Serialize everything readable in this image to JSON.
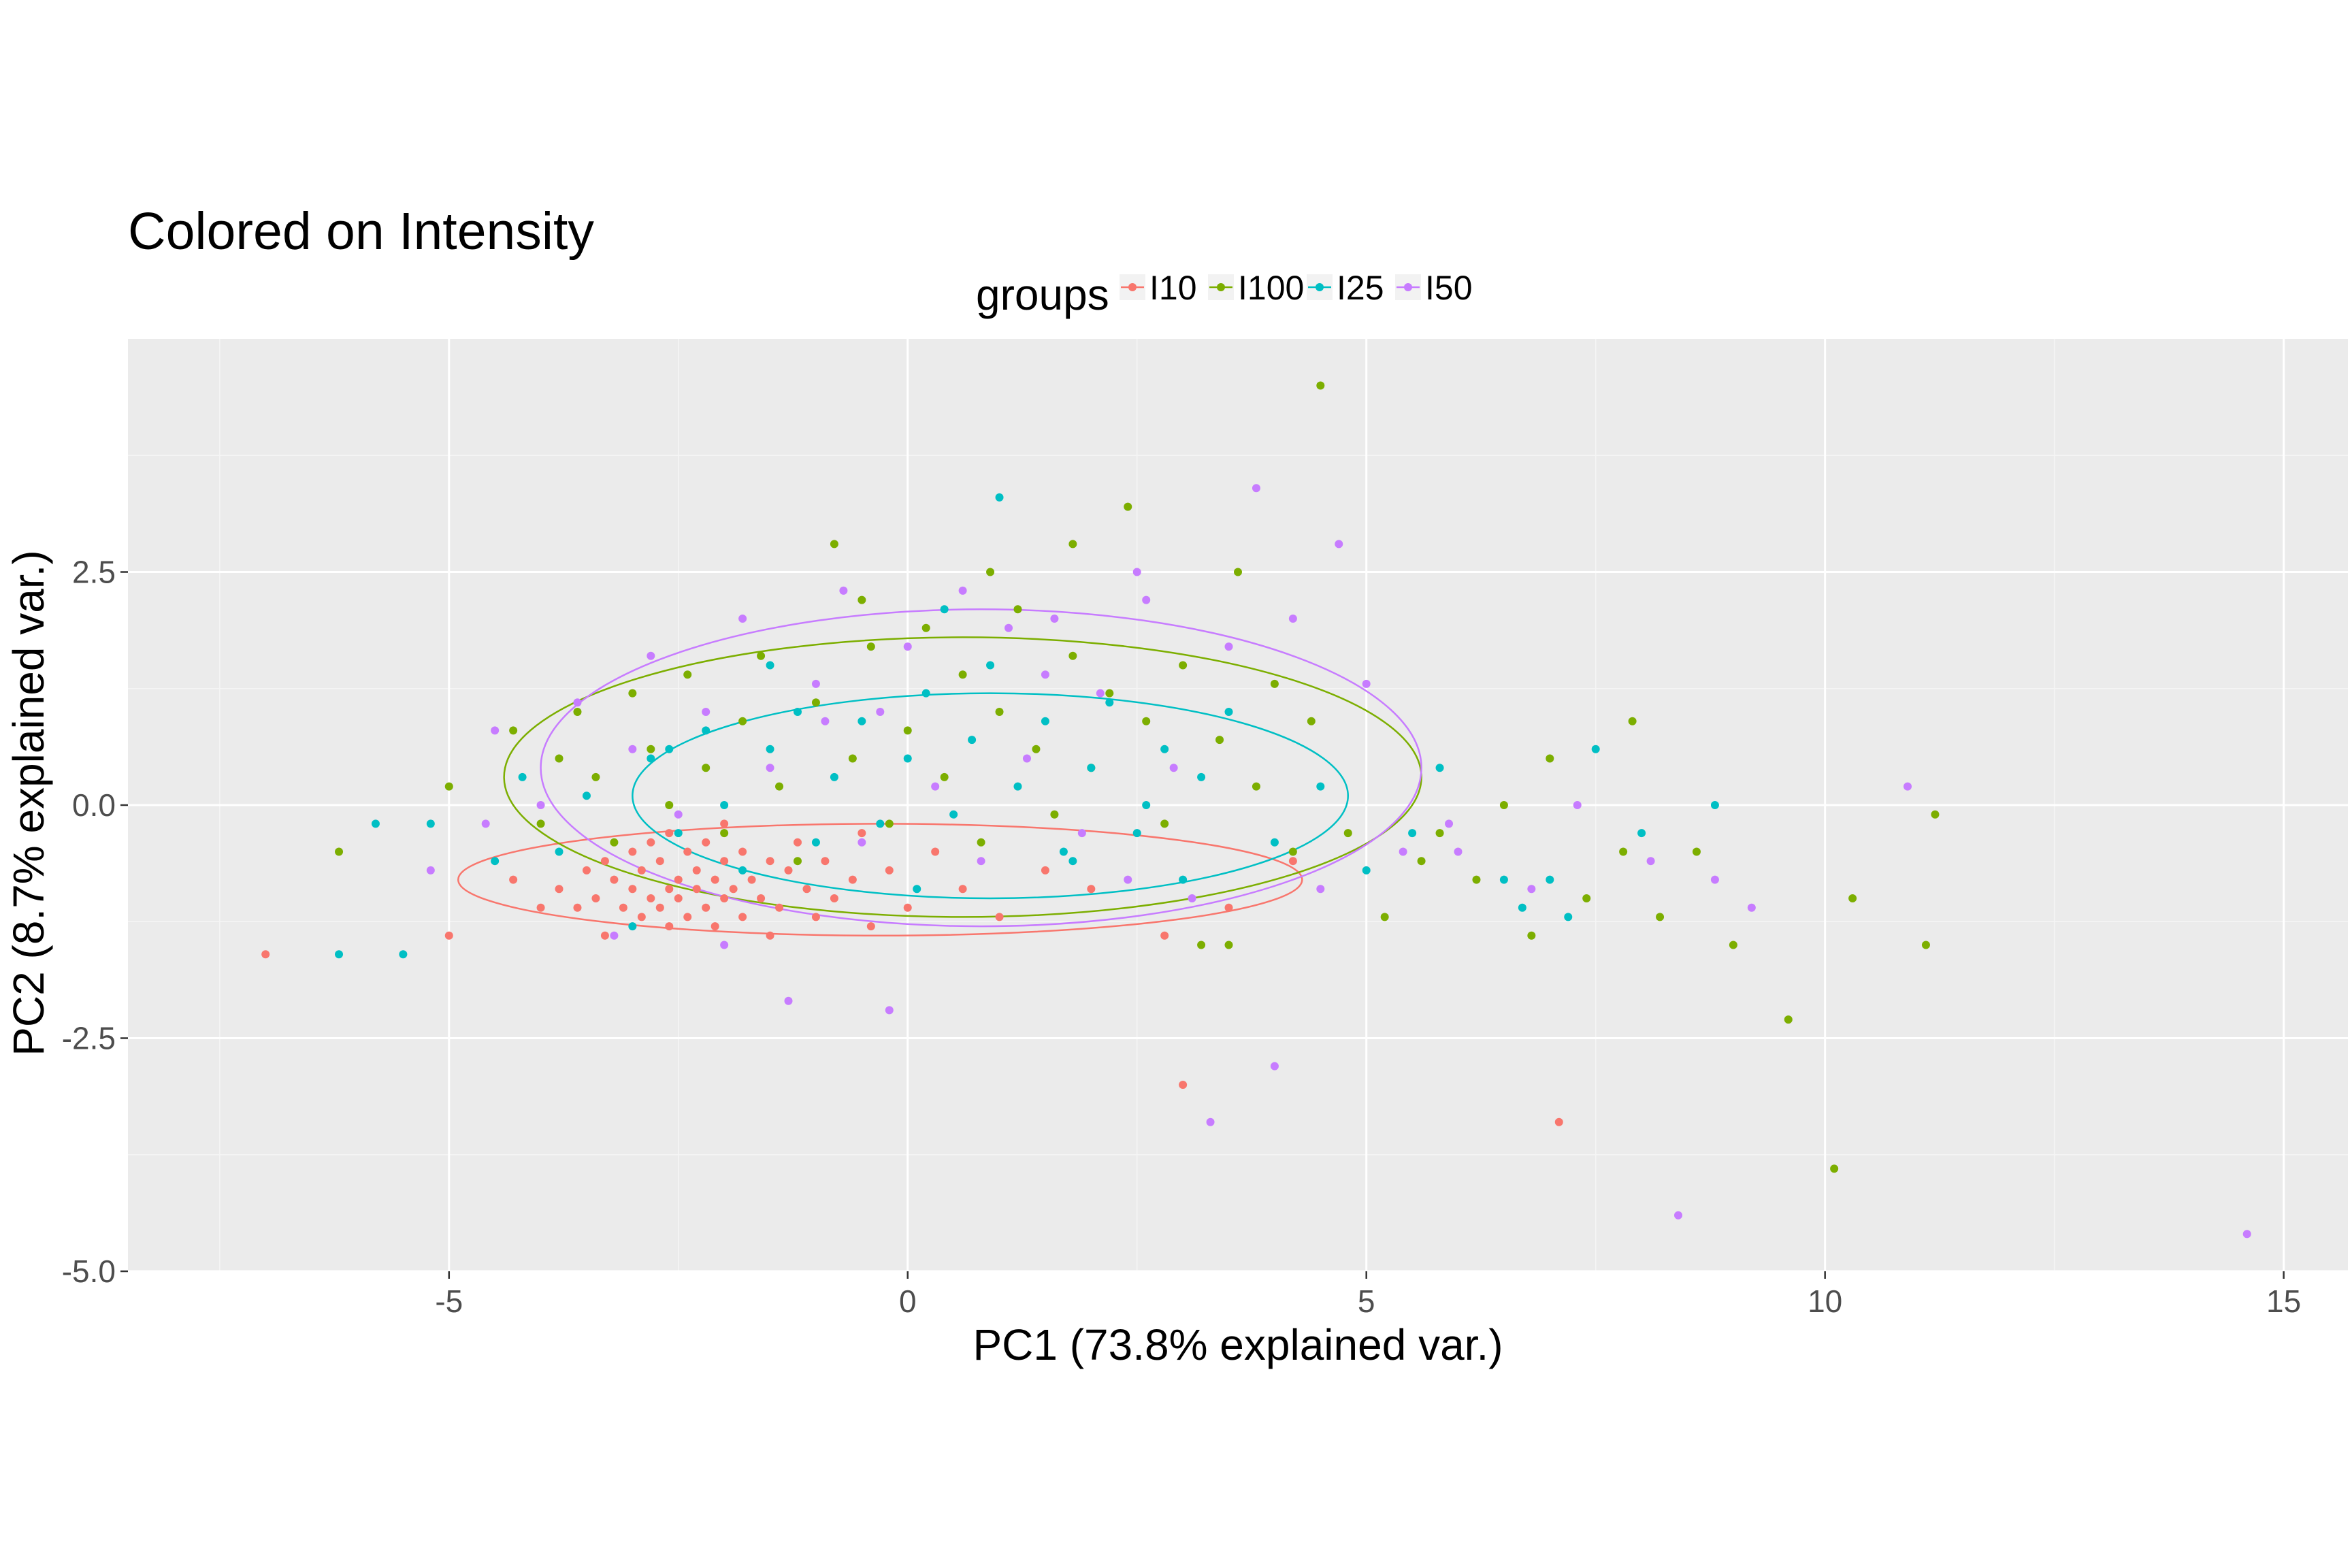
{
  "chart_data": {
    "type": "scatter",
    "title": "Colored on Intensity",
    "xlabel": "PC1 (73.8% explained var.)",
    "ylabel": "PC2 (8.7% explained var.)",
    "xlim": [
      -8.5,
      15.7
    ],
    "ylim": [
      -5.0,
      5.0
    ],
    "x_ticks": [
      -5,
      0,
      5,
      10,
      15
    ],
    "x_tick_labels": [
      "-5",
      "0",
      "5",
      "10",
      "15"
    ],
    "y_ticks": [
      -5.0,
      -2.5,
      0.0,
      2.5
    ],
    "y_tick_labels": [
      "-5.0",
      "-2.5",
      "0.0",
      "2.5"
    ],
    "grid": true,
    "legend": {
      "title": "groups",
      "position": "top"
    },
    "series": [
      {
        "name": "I10",
        "color": "#F8766D",
        "ellipse": {
          "cx": -0.3,
          "cy": -0.8,
          "rx": 4.6,
          "ry": 0.6
        },
        "points": [
          [
            -7.0,
            -1.6
          ],
          [
            -5.0,
            -1.4
          ],
          [
            -4.3,
            -0.8
          ],
          [
            -4.0,
            -1.1
          ],
          [
            -3.8,
            -0.9
          ],
          [
            -3.6,
            -1.1
          ],
          [
            -3.5,
            -0.7
          ],
          [
            -3.4,
            -1.0
          ],
          [
            -3.3,
            -0.6
          ],
          [
            -3.2,
            -0.8
          ],
          [
            -3.1,
            -1.1
          ],
          [
            -3.0,
            -0.9
          ],
          [
            -3.0,
            -0.5
          ],
          [
            -2.9,
            -1.2
          ],
          [
            -2.9,
            -0.7
          ],
          [
            -2.8,
            -1.0
          ],
          [
            -2.8,
            -0.4
          ],
          [
            -2.7,
            -1.1
          ],
          [
            -2.7,
            -0.6
          ],
          [
            -2.6,
            -0.9
          ],
          [
            -2.6,
            -1.3
          ],
          [
            -2.6,
            -0.3
          ],
          [
            -2.5,
            -0.8
          ],
          [
            -2.5,
            -1.0
          ],
          [
            -2.4,
            -0.5
          ],
          [
            -2.4,
            -1.2
          ],
          [
            -2.3,
            -0.7
          ],
          [
            -2.3,
            -0.9
          ],
          [
            -2.2,
            -1.1
          ],
          [
            -2.2,
            -0.4
          ],
          [
            -2.1,
            -0.8
          ],
          [
            -2.1,
            -1.3
          ],
          [
            -2.0,
            -0.6
          ],
          [
            -2.0,
            -1.0
          ],
          [
            -1.9,
            -0.9
          ],
          [
            -1.8,
            -0.5
          ],
          [
            -1.8,
            -1.2
          ],
          [
            -1.7,
            -0.8
          ],
          [
            -1.6,
            -1.0
          ],
          [
            -1.5,
            -0.6
          ],
          [
            -1.4,
            -1.1
          ],
          [
            -1.3,
            -0.7
          ],
          [
            -1.2,
            -0.4
          ],
          [
            -1.1,
            -0.9
          ],
          [
            -1.0,
            -1.2
          ],
          [
            -0.9,
            -0.6
          ],
          [
            -0.8,
            -1.0
          ],
          [
            -0.6,
            -0.8
          ],
          [
            -0.4,
            -1.3
          ],
          [
            -0.2,
            -0.7
          ],
          [
            0.0,
            -1.1
          ],
          [
            0.3,
            -0.5
          ],
          [
            0.6,
            -0.9
          ],
          [
            1.0,
            -1.2
          ],
          [
            1.5,
            -0.7
          ],
          [
            2.0,
            -0.9
          ],
          [
            2.8,
            -1.4
          ],
          [
            3.0,
            -3.0
          ],
          [
            3.5,
            -1.1
          ],
          [
            4.2,
            -0.6
          ],
          [
            7.1,
            -3.4
          ],
          [
            -3.3,
            -1.4
          ],
          [
            -2.0,
            -0.2
          ],
          [
            -1.5,
            -1.4
          ],
          [
            -0.5,
            -0.3
          ]
        ]
      },
      {
        "name": "I100",
        "color": "#7CAE00",
        "ellipse": {
          "cx": 0.6,
          "cy": 0.3,
          "rx": 5.0,
          "ry": 1.5
        },
        "points": [
          [
            -6.2,
            -0.5
          ],
          [
            -5.0,
            0.2
          ],
          [
            -4.3,
            0.8
          ],
          [
            -4.0,
            -0.2
          ],
          [
            -3.8,
            0.5
          ],
          [
            -3.6,
            1.0
          ],
          [
            -3.4,
            0.3
          ],
          [
            -3.2,
            -0.4
          ],
          [
            -3.0,
            1.2
          ],
          [
            -2.8,
            0.6
          ],
          [
            -2.6,
            0.0
          ],
          [
            -2.4,
            1.4
          ],
          [
            -2.2,
            0.4
          ],
          [
            -2.0,
            -0.3
          ],
          [
            -1.8,
            0.9
          ],
          [
            -1.6,
            1.6
          ],
          [
            -1.4,
            0.2
          ],
          [
            -1.2,
            -0.6
          ],
          [
            -1.0,
            1.1
          ],
          [
            -0.8,
            2.8
          ],
          [
            -0.6,
            0.5
          ],
          [
            -0.4,
            1.7
          ],
          [
            -0.2,
            -0.2
          ],
          [
            0.0,
            0.8
          ],
          [
            0.2,
            1.9
          ],
          [
            0.4,
            0.3
          ],
          [
            0.6,
            1.4
          ],
          [
            0.8,
            -0.4
          ],
          [
            1.0,
            1.0
          ],
          [
            1.2,
            2.1
          ],
          [
            1.4,
            0.6
          ],
          [
            1.6,
            -0.1
          ],
          [
            1.8,
            1.6
          ],
          [
            2.0,
            0.4
          ],
          [
            2.2,
            1.2
          ],
          [
            2.4,
            3.2
          ],
          [
            2.6,
            0.9
          ],
          [
            2.8,
            -0.2
          ],
          [
            3.0,
            1.5
          ],
          [
            3.2,
            -1.5
          ],
          [
            3.4,
            0.7
          ],
          [
            3.6,
            2.5
          ],
          [
            3.8,
            0.2
          ],
          [
            4.0,
            1.3
          ],
          [
            4.2,
            -0.5
          ],
          [
            4.4,
            0.9
          ],
          [
            4.5,
            4.5
          ],
          [
            4.8,
            -0.3
          ],
          [
            5.2,
            -1.2
          ],
          [
            5.6,
            -0.6
          ],
          [
            5.8,
            -0.3
          ],
          [
            6.2,
            -0.8
          ],
          [
            6.5,
            0.0
          ],
          [
            6.8,
            -1.4
          ],
          [
            7.0,
            0.5
          ],
          [
            7.4,
            -1.0
          ],
          [
            7.8,
            -0.5
          ],
          [
            7.9,
            0.9
          ],
          [
            8.2,
            -1.2
          ],
          [
            8.6,
            -0.5
          ],
          [
            9.0,
            -1.5
          ],
          [
            9.6,
            -2.3
          ],
          [
            10.1,
            -3.9
          ],
          [
            10.3,
            -1.0
          ],
          [
            11.2,
            -0.1
          ],
          [
            11.1,
            -1.5
          ],
          [
            1.8,
            2.8
          ],
          [
            -0.5,
            2.2
          ],
          [
            0.9,
            2.5
          ],
          [
            3.5,
            -1.5
          ]
        ]
      },
      {
        "name": "I25",
        "color": "#00BFC4",
        "ellipse": {
          "cx": 0.9,
          "cy": 0.1,
          "rx": 3.9,
          "ry": 1.1
        },
        "points": [
          [
            -6.2,
            -1.6
          ],
          [
            -5.8,
            -0.2
          ],
          [
            -5.5,
            -1.6
          ],
          [
            -5.2,
            -0.2
          ],
          [
            -4.5,
            -0.6
          ],
          [
            -4.2,
            0.3
          ],
          [
            -3.8,
            -0.5
          ],
          [
            -3.5,
            0.1
          ],
          [
            -3.0,
            -1.3
          ],
          [
            -2.8,
            0.5
          ],
          [
            -2.5,
            -0.3
          ],
          [
            -2.2,
            0.8
          ],
          [
            -2.0,
            0.0
          ],
          [
            -1.8,
            -0.7
          ],
          [
            -1.5,
            0.6
          ],
          [
            -1.2,
            1.0
          ],
          [
            -1.0,
            -0.4
          ],
          [
            -0.8,
            0.3
          ],
          [
            -0.5,
            0.9
          ],
          [
            -0.3,
            -0.2
          ],
          [
            0.0,
            0.5
          ],
          [
            0.2,
            1.2
          ],
          [
            0.5,
            -0.1
          ],
          [
            0.7,
            0.7
          ],
          [
            0.9,
            1.5
          ],
          [
            1.0,
            3.3
          ],
          [
            1.2,
            0.2
          ],
          [
            1.5,
            0.9
          ],
          [
            1.7,
            -0.5
          ],
          [
            2.0,
            0.4
          ],
          [
            2.2,
            1.1
          ],
          [
            2.5,
            -0.3
          ],
          [
            2.8,
            0.6
          ],
          [
            3.0,
            -0.8
          ],
          [
            3.2,
            0.3
          ],
          [
            3.5,
            1.0
          ],
          [
            4.0,
            -0.4
          ],
          [
            4.5,
            0.2
          ],
          [
            5.0,
            -0.7
          ],
          [
            5.5,
            -0.3
          ],
          [
            5.8,
            0.4
          ],
          [
            6.5,
            -0.8
          ],
          [
            6.7,
            -1.1
          ],
          [
            7.0,
            -0.8
          ],
          [
            7.2,
            -1.2
          ],
          [
            7.5,
            0.6
          ],
          [
            8.0,
            -0.3
          ],
          [
            8.8,
            0.0
          ],
          [
            -1.5,
            1.5
          ],
          [
            0.4,
            2.1
          ],
          [
            1.8,
            -0.6
          ],
          [
            2.6,
            0.0
          ],
          [
            -2.6,
            0.6
          ],
          [
            0.1,
            -0.9
          ]
        ]
      },
      {
        "name": "I50",
        "color": "#C77CFF",
        "ellipse": {
          "cx": 0.8,
          "cy": 0.4,
          "rx": 4.8,
          "ry": 1.7
        },
        "points": [
          [
            -5.2,
            -0.7
          ],
          [
            -4.6,
            -0.2
          ],
          [
            -4.5,
            0.8
          ],
          [
            -4.0,
            0.0
          ],
          [
            -3.6,
            1.1
          ],
          [
            -3.2,
            -1.4
          ],
          [
            -3.0,
            0.6
          ],
          [
            -2.8,
            1.6
          ],
          [
            -2.5,
            -0.1
          ],
          [
            -2.2,
            1.0
          ],
          [
            -2.0,
            -1.5
          ],
          [
            -1.8,
            2.0
          ],
          [
            -1.5,
            0.4
          ],
          [
            -1.3,
            -2.1
          ],
          [
            -1.0,
            1.3
          ],
          [
            -0.7,
            2.3
          ],
          [
            -0.5,
            -0.4
          ],
          [
            -0.3,
            1.0
          ],
          [
            -0.2,
            -2.2
          ],
          [
            0.0,
            1.7
          ],
          [
            0.3,
            0.2
          ],
          [
            0.6,
            2.3
          ],
          [
            0.8,
            -0.6
          ],
          [
            1.1,
            1.9
          ],
          [
            1.3,
            0.5
          ],
          [
            1.6,
            2.0
          ],
          [
            1.9,
            -0.3
          ],
          [
            2.1,
            1.2
          ],
          [
            2.4,
            -0.8
          ],
          [
            2.6,
            2.2
          ],
          [
            2.9,
            0.4
          ],
          [
            3.1,
            -1.0
          ],
          [
            3.3,
            -3.4
          ],
          [
            3.5,
            1.7
          ],
          [
            3.8,
            3.4
          ],
          [
            4.0,
            -2.8
          ],
          [
            4.2,
            2.0
          ],
          [
            4.5,
            -0.9
          ],
          [
            4.7,
            2.8
          ],
          [
            5.0,
            1.3
          ],
          [
            5.4,
            -0.5
          ],
          [
            5.9,
            -0.2
          ],
          [
            6.0,
            -0.5
          ],
          [
            6.8,
            -0.9
          ],
          [
            7.3,
            0.0
          ],
          [
            8.1,
            -0.6
          ],
          [
            8.4,
            -4.4
          ],
          [
            8.8,
            -0.8
          ],
          [
            9.2,
            -1.1
          ],
          [
            10.9,
            0.2
          ],
          [
            14.6,
            -4.6
          ],
          [
            1.5,
            1.4
          ],
          [
            -0.9,
            0.9
          ],
          [
            2.5,
            2.5
          ]
        ]
      }
    ]
  }
}
